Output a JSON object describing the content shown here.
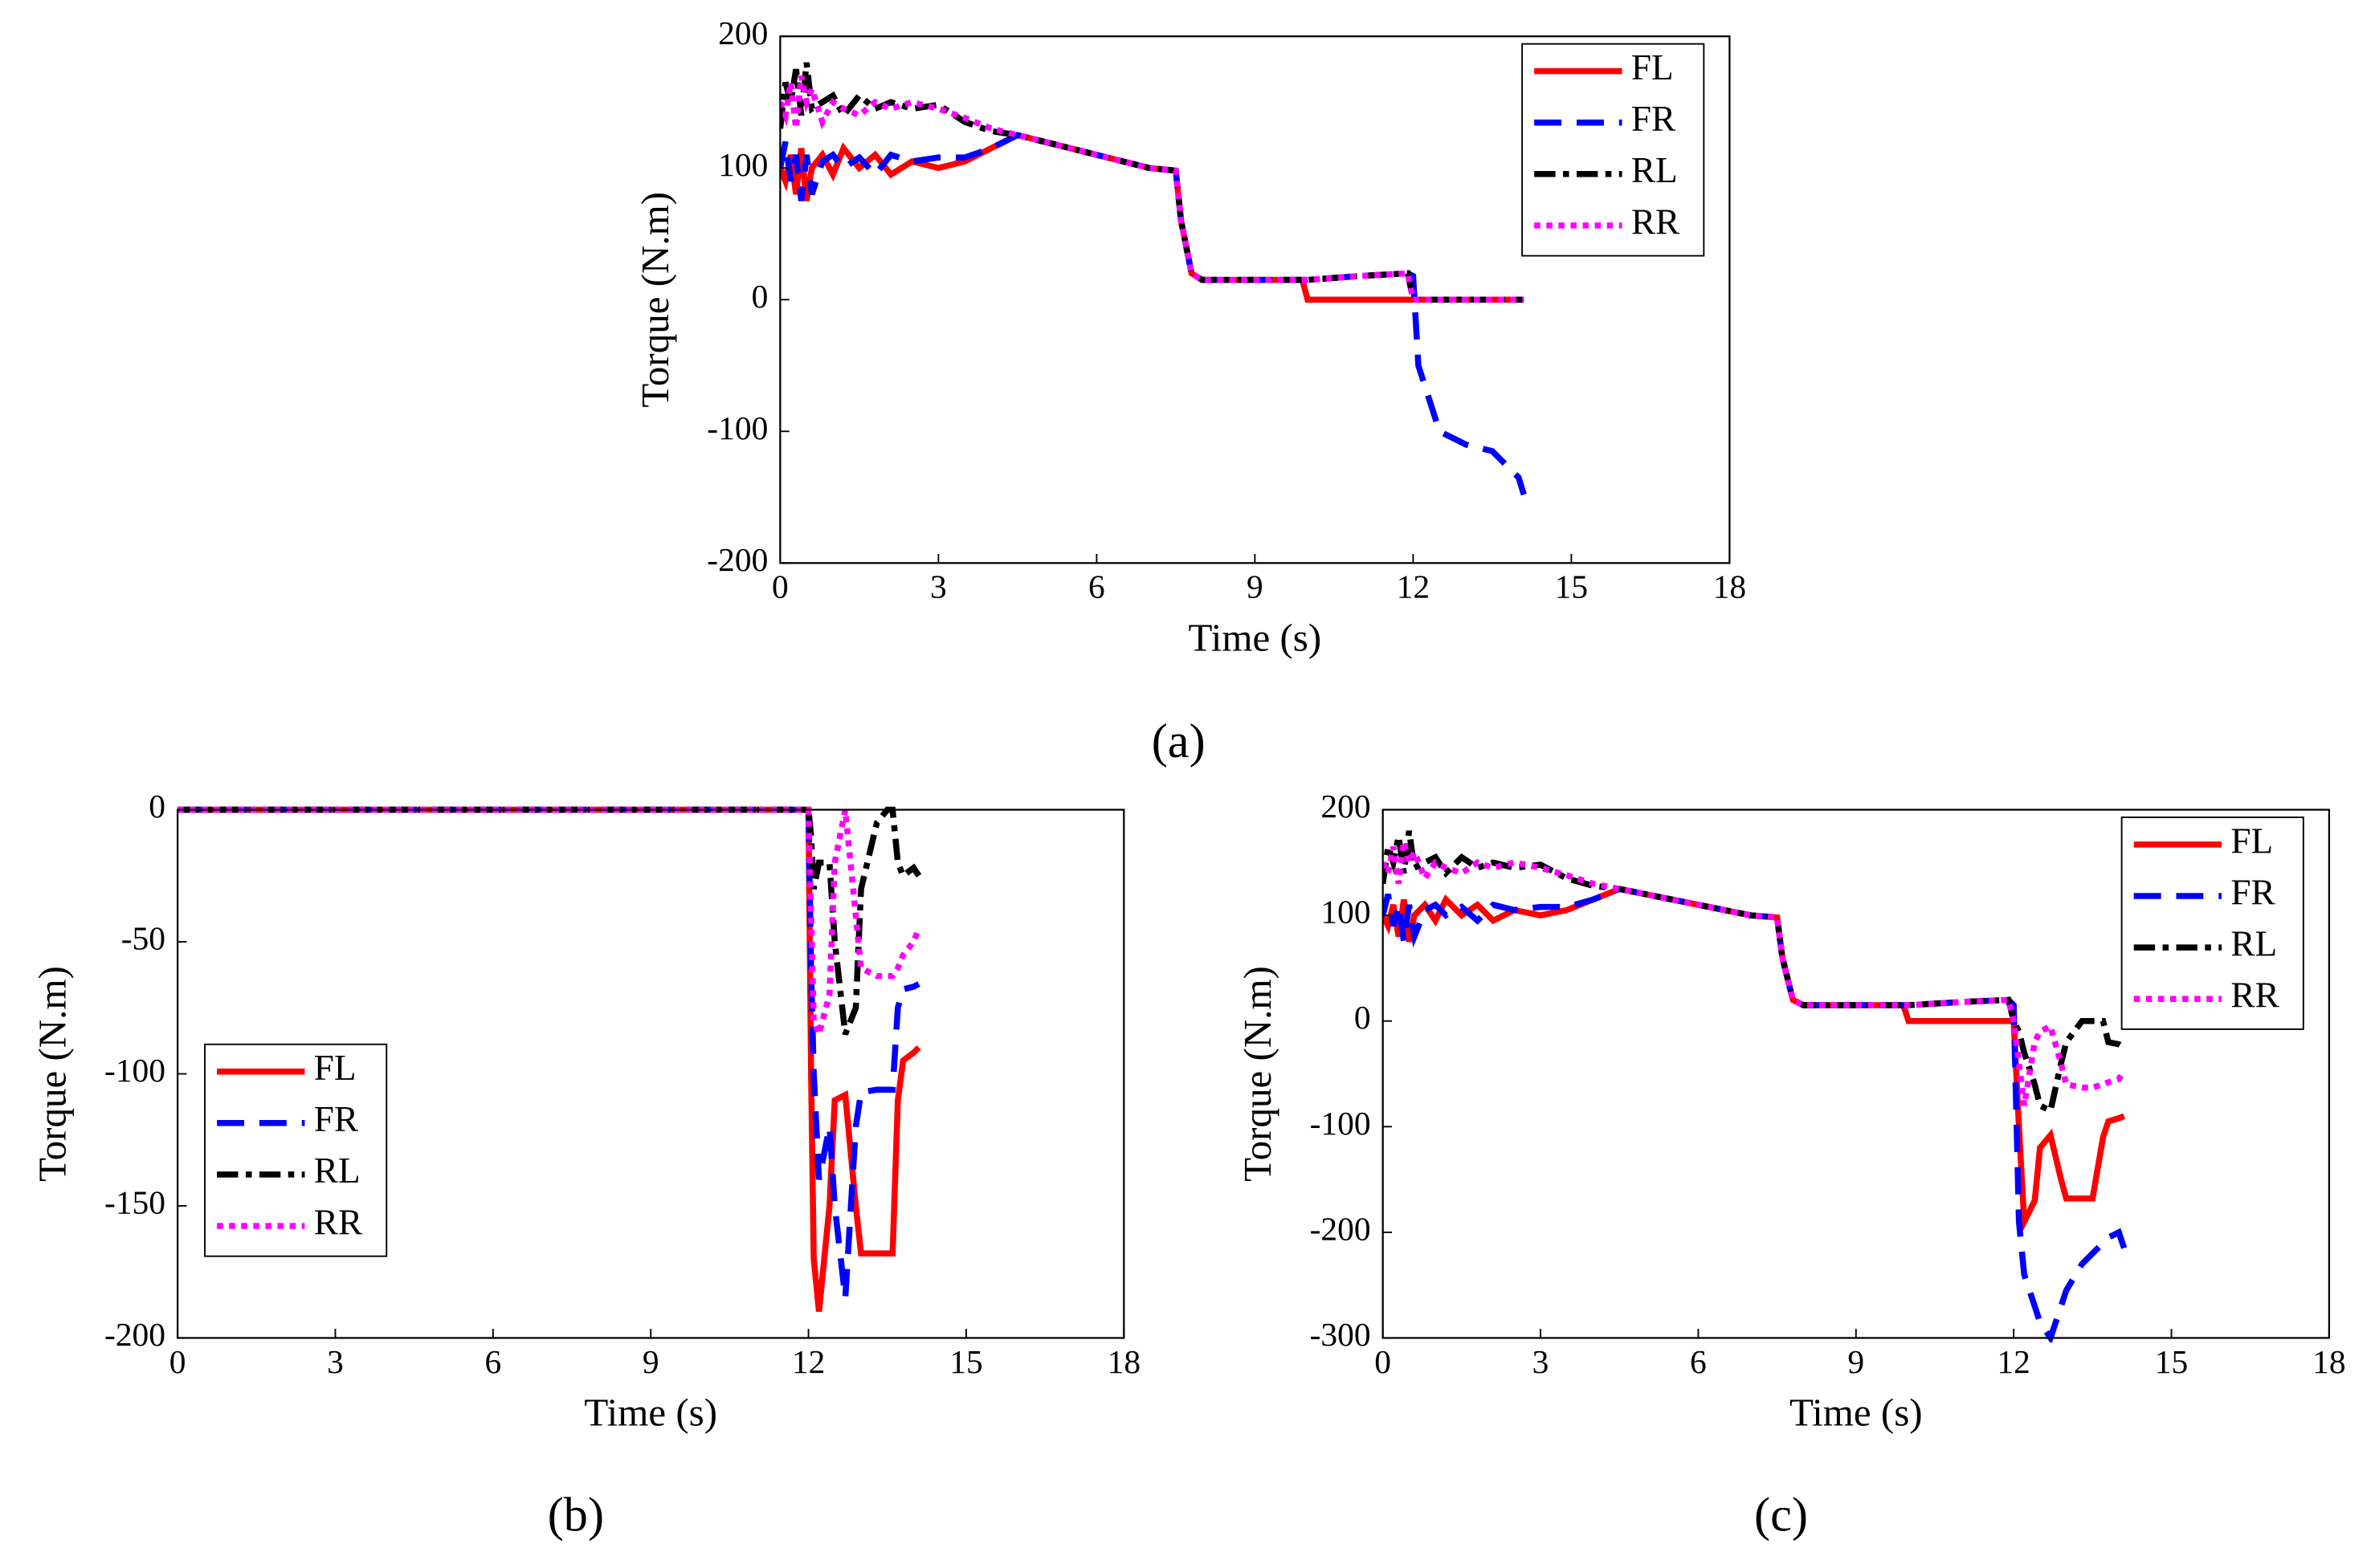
{
  "chart_data": [
    {
      "type": "line",
      "label": "(a)",
      "xlabel": "Time (s)",
      "ylabel": "Torque (N.m)",
      "x": [
        0,
        0.1,
        0.2,
        0.3,
        0.4,
        0.5,
        0.6,
        0.8,
        1.0,
        1.2,
        1.5,
        1.8,
        2.1,
        2.5,
        3.0,
        3.5,
        4.0,
        4.5,
        5,
        6,
        7,
        7.5,
        7.6,
        7.8,
        8,
        9,
        9.9,
        10,
        11,
        11.9,
        12,
        12.1,
        12.5,
        13,
        13.5,
        14,
        14.1
      ],
      "series": [
        {
          "name": "FL",
          "color": "#ff0000",
          "style": "solid",
          "values": [
            100,
            90,
            110,
            80,
            115,
            75,
            100,
            110,
            95,
            115,
            100,
            110,
            95,
            105,
            100,
            105,
            115,
            125,
            120,
            110,
            100,
            98,
            60,
            20,
            15,
            15,
            15,
            0,
            0,
            0,
            0,
            0,
            0,
            0,
            0,
            0,
            0
          ]
        },
        {
          "name": "FR",
          "color": "#0000ff",
          "style": "dashed",
          "values": [
            100,
            120,
            90,
            110,
            75,
            110,
            80,
            105,
            110,
            100,
            108,
            95,
            110,
            105,
            108,
            108,
            115,
            125,
            120,
            110,
            100,
            98,
            60,
            20,
            15,
            15,
            15,
            15,
            18,
            20,
            18,
            -50,
            -100,
            -110,
            -115,
            -135,
            -148
          ]
        },
        {
          "name": "RL",
          "color": "#000000",
          "style": "dashdot",
          "values": [
            130,
            165,
            150,
            175,
            140,
            180,
            145,
            150,
            155,
            140,
            155,
            145,
            150,
            145,
            148,
            135,
            128,
            125,
            120,
            110,
            100,
            98,
            60,
            20,
            15,
            15,
            15,
            15,
            18,
            20,
            0,
            0,
            0,
            0,
            0,
            0,
            0
          ]
        },
        {
          "name": "RR",
          "color": "#ff00ff",
          "style": "dotted",
          "values": [
            150,
            140,
            165,
            130,
            170,
            150,
            160,
            135,
            150,
            145,
            140,
            150,
            145,
            150,
            145,
            138,
            130,
            125,
            120,
            110,
            100,
            98,
            60,
            20,
            15,
            15,
            15,
            15,
            18,
            20,
            0,
            0,
            0,
            0,
            0,
            0,
            0
          ]
        }
      ],
      "xlim": [
        0,
        18
      ],
      "xticks": [
        0,
        3,
        6,
        9,
        12,
        15,
        18
      ],
      "ylim": [
        -200,
        200
      ],
      "yticks": [
        -200,
        -100,
        0,
        100,
        200
      ],
      "legend": "upper right"
    },
    {
      "type": "line",
      "label": "(b)",
      "xlabel": "Time (s)",
      "ylabel": "Torque (N.m)",
      "x": [
        0,
        12,
        12.05,
        12.1,
        12.2,
        12.4,
        12.5,
        12.7,
        12.9,
        13,
        13.3,
        13.5,
        13.6,
        13.7,
        13.8,
        14,
        14.1
      ],
      "series": [
        {
          "name": "FL",
          "color": "#ff0000",
          "style": "solid",
          "values": [
            0,
            0,
            -100,
            -170,
            -190,
            -150,
            -110,
            -108,
            -150,
            -168,
            -168,
            -168,
            -168,
            -110,
            -95,
            -92,
            -90
          ]
        },
        {
          "name": "FR",
          "color": "#0000ff",
          "style": "dashed",
          "values": [
            0,
            0,
            -60,
            -100,
            -140,
            -120,
            -150,
            -185,
            -120,
            -107,
            -106,
            -106,
            -106,
            -75,
            -68,
            -67,
            -66
          ]
        },
        {
          "name": "RL",
          "color": "#000000",
          "style": "dashdot",
          "values": [
            0,
            0,
            -10,
            -30,
            -20,
            -20,
            -50,
            -85,
            -75,
            -30,
            -5,
            0,
            0,
            -20,
            -25,
            -22,
            -25
          ]
        },
        {
          "name": "RR",
          "color": "#ff00ff",
          "style": "dotted",
          "values": [
            0,
            0,
            -40,
            -80,
            -85,
            -70,
            -20,
            0,
            -40,
            -60,
            -63,
            -63,
            -63,
            -60,
            -55,
            -50,
            -45
          ]
        }
      ],
      "xlim": [
        0,
        18
      ],
      "xticks": [
        0,
        3,
        6,
        9,
        12,
        15,
        18
      ],
      "ylim": [
        -200,
        0
      ],
      "yticks": [
        -200,
        -150,
        -100,
        -50,
        0
      ],
      "legend": "lower left"
    },
    {
      "type": "line",
      "label": "(c)",
      "xlabel": "Time (s)",
      "ylabel": "Torque (N.m)",
      "x": [
        0,
        0.1,
        0.2,
        0.3,
        0.4,
        0.5,
        0.6,
        0.8,
        1.0,
        1.2,
        1.5,
        1.8,
        2.1,
        2.5,
        3.0,
        3.5,
        4.0,
        4.5,
        5,
        6,
        7,
        7.5,
        7.6,
        7.8,
        8,
        9,
        9.9,
        10,
        11,
        11.9,
        12,
        12.1,
        12.2,
        12.4,
        12.5,
        12.7,
        12.9,
        13,
        13.3,
        13.5,
        13.7,
        13.8,
        14,
        14.1
      ],
      "series": [
        {
          "name": "FL",
          "color": "#ff0000",
          "style": "solid",
          "values": [
            100,
            90,
            110,
            80,
            115,
            75,
            100,
            110,
            95,
            115,
            100,
            110,
            95,
            105,
            100,
            105,
            115,
            125,
            120,
            110,
            100,
            98,
            60,
            20,
            15,
            15,
            15,
            0,
            0,
            0,
            0,
            -100,
            -190,
            -170,
            -120,
            -108,
            -150,
            -168,
            -168,
            -168,
            -110,
            -95,
            -92,
            -90
          ]
        },
        {
          "name": "FR",
          "color": "#0000ff",
          "style": "dashed",
          "values": [
            100,
            120,
            90,
            110,
            75,
            110,
            80,
            105,
            110,
            100,
            108,
            95,
            110,
            105,
            108,
            108,
            115,
            125,
            120,
            110,
            100,
            98,
            60,
            20,
            15,
            15,
            15,
            15,
            18,
            20,
            15,
            -190,
            -240,
            -270,
            -285,
            -300,
            -270,
            -255,
            -230,
            -220,
            -210,
            -205,
            -200,
            -215
          ]
        },
        {
          "name": "RL",
          "color": "#000000",
          "style": "dashdot",
          "values": [
            130,
            165,
            150,
            175,
            140,
            180,
            145,
            150,
            155,
            140,
            155,
            145,
            150,
            145,
            148,
            135,
            128,
            125,
            120,
            110,
            100,
            98,
            60,
            20,
            15,
            15,
            15,
            15,
            18,
            20,
            0,
            -10,
            -30,
            -60,
            -80,
            -85,
            -40,
            -20,
            0,
            0,
            0,
            -20,
            -22,
            -25
          ]
        },
        {
          "name": "RR",
          "color": "#ff00ff",
          "style": "dotted",
          "values": [
            150,
            140,
            165,
            130,
            170,
            150,
            160,
            135,
            150,
            145,
            140,
            150,
            145,
            150,
            145,
            138,
            130,
            125,
            120,
            110,
            100,
            98,
            60,
            20,
            15,
            15,
            15,
            15,
            18,
            20,
            0,
            -40,
            -80,
            -20,
            -10,
            -5,
            -40,
            -60,
            -63,
            -63,
            -60,
            -58,
            -55,
            -48
          ]
        }
      ],
      "xlim": [
        0,
        18
      ],
      "xticks": [
        0,
        3,
        6,
        9,
        12,
        15,
        18
      ],
      "ylim": [
        -300,
        200
      ],
      "yticks": [
        -300,
        -200,
        -100,
        0,
        100,
        200
      ],
      "legend": "upper right"
    }
  ]
}
